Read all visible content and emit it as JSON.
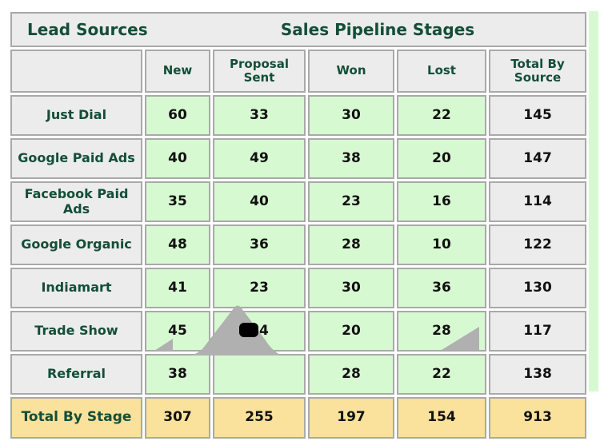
{
  "chart_data": {
    "type": "table",
    "corner_label": "Lead Sources",
    "title": "Sales Pipeline Stages",
    "columns": [
      "New",
      "Proposal Sent",
      "Won",
      "Lost",
      "Total By Source"
    ],
    "rows": [
      {
        "label": "Just Dial",
        "values": [
          "60",
          "33",
          "30",
          "22",
          "145"
        ]
      },
      {
        "label": "Google Paid Ads",
        "values": [
          "40",
          "49",
          "38",
          "20",
          "147"
        ]
      },
      {
        "label": "Facebook Paid Ads",
        "values": [
          "35",
          "40",
          "23",
          "16",
          "114"
        ]
      },
      {
        "label": "Google Organic",
        "values": [
          "48",
          "36",
          "28",
          "10",
          "122"
        ]
      },
      {
        "label": "Indiamart",
        "values": [
          "41",
          "23",
          "30",
          "36",
          "130"
        ]
      },
      {
        "label": "Trade Show",
        "values": [
          "45",
          "24",
          "20",
          "28",
          "117"
        ]
      },
      {
        "label": "Referral",
        "values": [
          "38",
          "",
          "28",
          "22",
          "138"
        ]
      }
    ],
    "footer": {
      "label": "Total By Stage",
      "values": [
        "307",
        "255",
        "197",
        "154",
        "913"
      ]
    },
    "layout_hints": {
      "grid": "on",
      "obscured_cell": "Referral / Proposal Sent covered by gray artifact"
    }
  },
  "artifact": {
    "name": "gray-mountain-overlay",
    "fill": "#b0b0b0",
    "blob_fill": "#000000"
  },
  "colors": {
    "header_text": "#134e38",
    "value_text": "#111111",
    "header_cell_bg": "#ececec",
    "data_cell_bg": "#d7f9d1",
    "total_row_bg": "#fae19c",
    "gridline": "#a9a9a9",
    "side_strip_bg": "#d7f9d1"
  }
}
